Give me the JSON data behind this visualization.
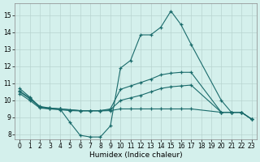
{
  "title": "",
  "xlabel": "Humidex (Indice chaleur)",
  "background_color": "#d4f0ec",
  "grid_color": "#b8d4d0",
  "line_color": "#1a6b6b",
  "xlim": [
    -0.5,
    23.5
  ],
  "ylim": [
    7.7,
    15.7
  ],
  "yticks": [
    8,
    9,
    10,
    11,
    12,
    13,
    14,
    15
  ],
  "xticks": [
    0,
    1,
    2,
    3,
    4,
    5,
    6,
    7,
    8,
    9,
    10,
    11,
    12,
    13,
    14,
    15,
    16,
    17,
    18,
    19,
    20,
    21,
    22,
    23
  ],
  "series": [
    {
      "x": [
        0,
        1,
        2,
        3,
        4,
        5,
        6,
        7,
        8,
        9,
        10,
        11,
        12,
        13,
        14,
        15,
        16,
        17,
        20,
        21,
        22,
        23
      ],
      "y": [
        10.7,
        10.2,
        9.6,
        9.5,
        9.5,
        8.7,
        7.95,
        7.85,
        7.85,
        8.5,
        11.9,
        12.35,
        13.85,
        13.85,
        14.3,
        15.25,
        14.45,
        13.3,
        10.0,
        9.3,
        9.3,
        8.9
      ]
    },
    {
      "x": [
        0,
        1,
        2,
        3,
        4,
        5,
        6,
        7,
        8,
        9,
        10,
        11,
        12,
        13,
        14,
        15,
        16,
        17,
        20,
        21,
        22,
        23
      ],
      "y": [
        10.55,
        10.15,
        9.65,
        9.55,
        9.5,
        9.45,
        9.4,
        9.4,
        9.4,
        9.5,
        10.65,
        10.85,
        11.05,
        11.25,
        11.5,
        11.6,
        11.65,
        11.65,
        9.3,
        9.3,
        9.3,
        8.9
      ]
    },
    {
      "x": [
        0,
        1,
        2,
        3,
        4,
        5,
        6,
        7,
        8,
        9,
        10,
        11,
        12,
        13,
        14,
        15,
        16,
        17,
        20,
        21,
        22,
        23
      ],
      "y": [
        10.5,
        10.1,
        9.6,
        9.55,
        9.5,
        9.45,
        9.4,
        9.4,
        9.4,
        9.45,
        10.0,
        10.15,
        10.3,
        10.5,
        10.7,
        10.8,
        10.85,
        10.9,
        9.3,
        9.3,
        9.3,
        8.9
      ]
    },
    {
      "x": [
        0,
        1,
        2,
        3,
        4,
        5,
        6,
        7,
        8,
        9,
        10,
        11,
        12,
        13,
        14,
        15,
        16,
        17,
        20,
        21,
        22,
        23
      ],
      "y": [
        10.4,
        10.0,
        9.55,
        9.5,
        9.45,
        9.4,
        9.38,
        9.38,
        9.38,
        9.4,
        9.5,
        9.5,
        9.5,
        9.5,
        9.5,
        9.5,
        9.5,
        9.5,
        9.3,
        9.3,
        9.3,
        8.9
      ]
    }
  ]
}
